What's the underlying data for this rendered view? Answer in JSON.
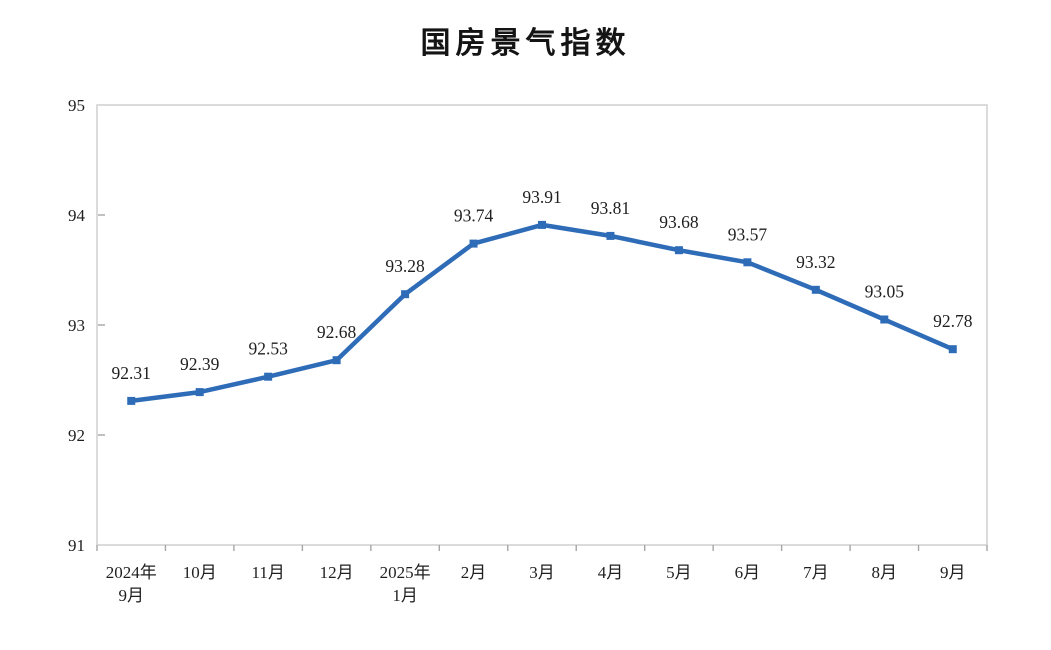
{
  "page": {
    "background": "#ffffff"
  },
  "chart_data": {
    "type": "line",
    "title": "国房景气指数",
    "categories": [
      [
        "2024年",
        "9月"
      ],
      [
        "10月"
      ],
      [
        "11月"
      ],
      [
        "12月"
      ],
      [
        "2025年",
        "1月"
      ],
      [
        "2月"
      ],
      [
        "3月"
      ],
      [
        "4月"
      ],
      [
        "5月"
      ],
      [
        "6月"
      ],
      [
        "7月"
      ],
      [
        "8月"
      ],
      [
        "9月"
      ]
    ],
    "series": [
      {
        "name": "国房景气指数",
        "values": [
          92.31,
          92.39,
          92.53,
          92.68,
          93.28,
          93.74,
          93.91,
          93.81,
          93.68,
          93.57,
          93.32,
          93.05,
          92.78
        ],
        "labels": [
          "92.31",
          "92.39",
          "92.53",
          "92.68",
          "93.28",
          "93.74",
          "93.91",
          "93.81",
          "93.68",
          "93.57",
          "93.32",
          "93.05",
          "92.78"
        ]
      }
    ],
    "xlabel": "",
    "ylabel": "",
    "ylim": [
      91,
      95
    ],
    "yticks": [
      91,
      92,
      93,
      94,
      95
    ],
    "grid": false,
    "legend_position": "none",
    "marker": "square",
    "colors": {
      "line": "#2e6cb8",
      "marker": "#2e6cb8",
      "frame": "#cfcfcf",
      "tick": "#a6a6a6",
      "text": "#1f1f1f"
    }
  }
}
